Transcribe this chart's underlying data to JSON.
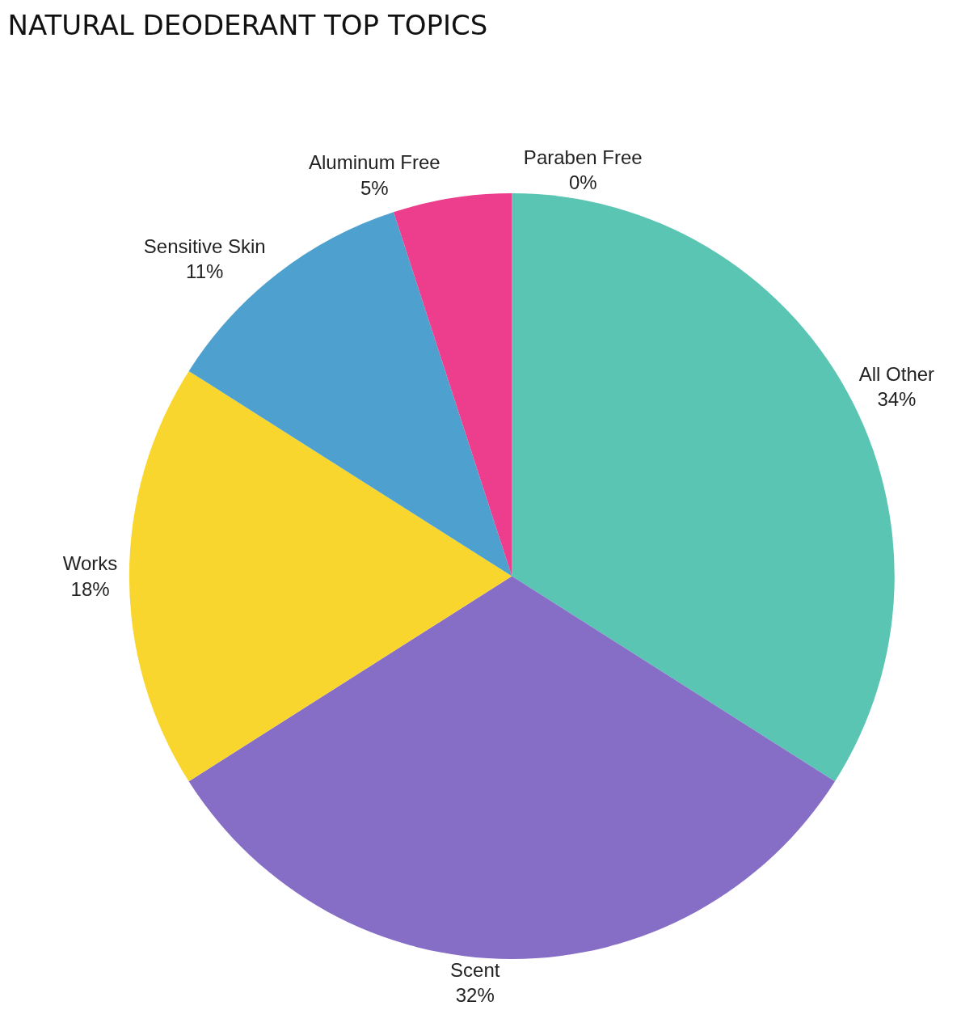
{
  "chart_data": {
    "type": "pie",
    "title": "NATURAL DEODERANT TOP TOPICS",
    "categories": [
      "All Other",
      "Scent",
      "Works",
      "Sensitive Skin",
      "Aluminum Free",
      "Paraben Free"
    ],
    "values": [
      34,
      32,
      18,
      11,
      5,
      0
    ],
    "value_labels": [
      "34%",
      "32%",
      "18%",
      "11%",
      "5%",
      "0%"
    ],
    "colors": [
      "#5bc5b3",
      "#866dc6",
      "#f9d62e",
      "#4ea1cf",
      "#ec3e8c",
      "#1a2340"
    ],
    "legend": false
  }
}
